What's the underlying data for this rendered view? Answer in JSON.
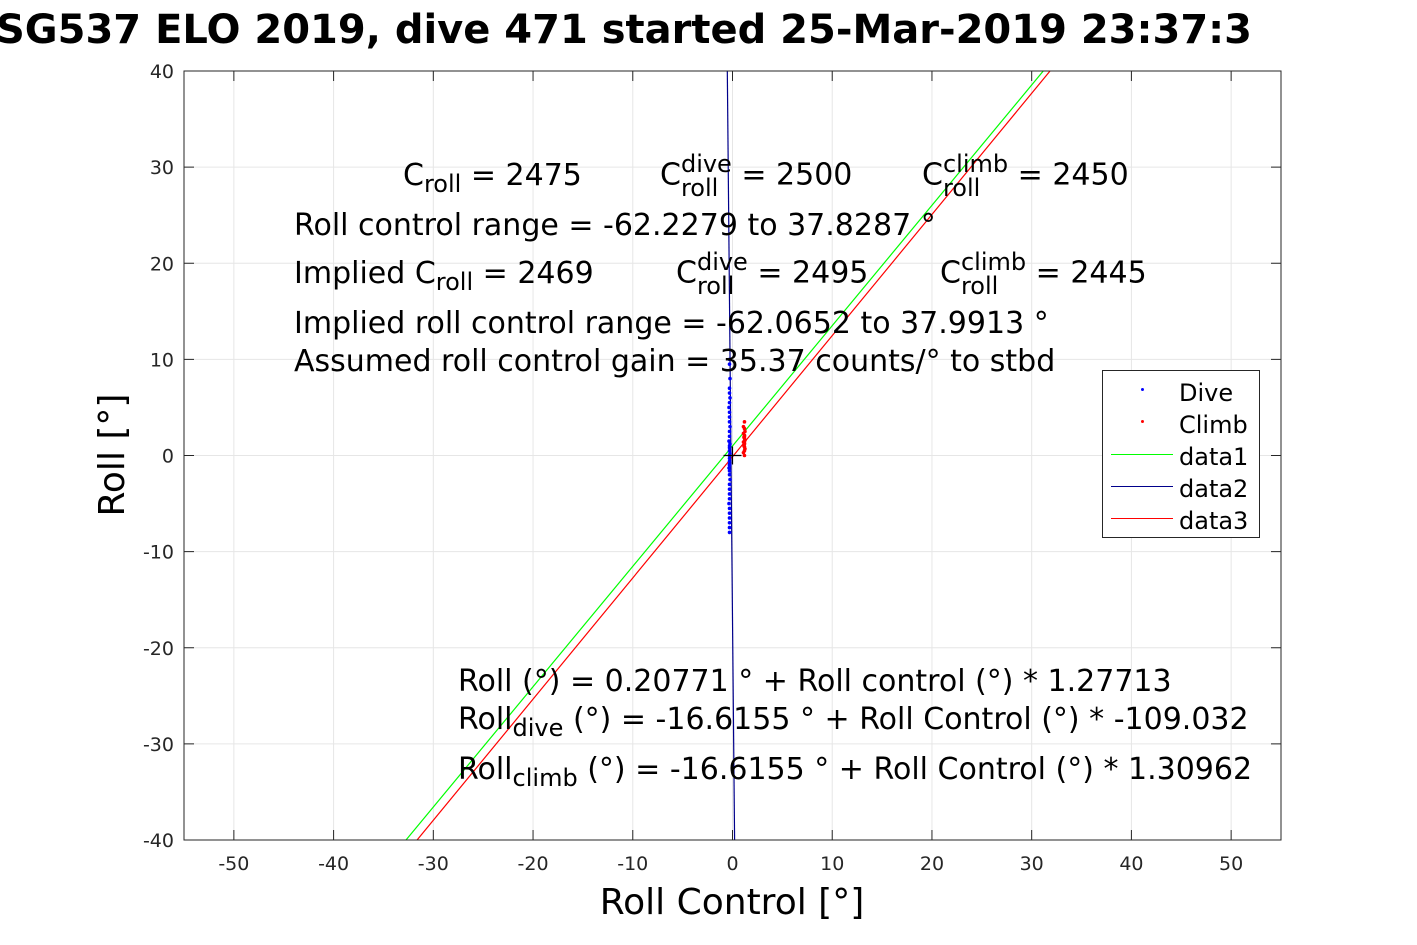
{
  "title": "SG537 ELO 2019, dive 471 started 25-Mar-2019 23:37:3",
  "chart_data": {
    "type": "scatter",
    "xlabel": "Roll Control [°]",
    "ylabel": "Roll [°]",
    "xlim": [
      -55,
      55
    ],
    "ylim": [
      -40,
      40
    ],
    "xticks": [
      -50,
      -40,
      -30,
      -20,
      -10,
      0,
      10,
      20,
      30,
      40,
      50
    ],
    "yticks": [
      -40,
      -30,
      -20,
      -10,
      0,
      10,
      20,
      30,
      40
    ],
    "xtick_labels": [
      "-50",
      "-40",
      "-30",
      "-20",
      "-10",
      "0",
      "10",
      "20",
      "30",
      "40",
      "50"
    ],
    "ytick_labels": [
      "-40",
      "-30",
      "-20",
      "-10",
      "0",
      "10",
      "20",
      "30",
      "40"
    ],
    "grid": true,
    "legend_position": "right",
    "series": [
      {
        "name": "Dive",
        "kind": "points",
        "color": "#0000ff",
        "x": [
          -0.3,
          -0.3,
          -0.25,
          -0.3,
          -0.3,
          -0.25,
          -0.3,
          -0.35,
          -0.3,
          -0.3,
          -0.3,
          -0.25,
          -0.3,
          -0.3,
          -0.35,
          -0.3,
          -0.3,
          -0.3,
          -0.25,
          -0.3,
          -0.3,
          -0.3,
          -0.3,
          -0.35,
          -0.3,
          -0.3,
          -0.25,
          -0.3,
          -0.3,
          -0.3,
          -0.3,
          -0.35,
          -0.3,
          -0.3,
          -0.3,
          -0.3,
          -0.3,
          -0.3,
          -0.25,
          -0.3
        ],
        "y": [
          10,
          9.5,
          8,
          7,
          6.5,
          6,
          5.5,
          5,
          4.5,
          4,
          3.5,
          3,
          2.5,
          2,
          1.5,
          1,
          0.8,
          0.5,
          0.2,
          0,
          -0.3,
          -0.6,
          -1,
          -1.3,
          -1.6,
          -2,
          -2.5,
          -3,
          -3.5,
          -4,
          -4.5,
          -5,
          -5.5,
          -6,
          -6.5,
          -7,
          -7.5,
          -8,
          1.2,
          -0.9
        ]
      },
      {
        "name": "Climb",
        "kind": "points",
        "color": "#ff0000",
        "x": [
          1.2,
          1.1,
          1.2,
          1.25,
          1.1,
          1.2,
          1.2,
          1.15,
          1.2,
          1.25,
          1.2,
          1.1,
          1.2,
          1.2,
          1.15,
          1.2,
          1.25,
          1.2,
          1.1,
          1.2
        ],
        "y": [
          3.5,
          3,
          2.8,
          2.5,
          2.3,
          2.1,
          2,
          1.9,
          1.8,
          1.6,
          1.5,
          1.4,
          1.3,
          1.2,
          1,
          0.9,
          0.7,
          0.5,
          0.3,
          0
        ]
      },
      {
        "name": "data1",
        "kind": "line",
        "color": "#00ff00",
        "x": [
          -32.74,
          31.16
        ],
        "y": [
          -40,
          40
        ]
      },
      {
        "name": "data2",
        "kind": "line",
        "color": "#00008b",
        "x": [
          -0.52,
          0.21
        ],
        "y": [
          40,
          -40
        ]
      },
      {
        "name": "data3",
        "kind": "line",
        "color": "#ff0000",
        "x": [
          -31.63,
          31.84
        ],
        "y": [
          -40,
          40
        ]
      }
    ],
    "center_marker": {
      "x": 0,
      "y": 0
    }
  },
  "annotations": {
    "line1": {
      "c": "C",
      "roll": "roll",
      "eq1": " = 2475",
      "dive_sup": "dive",
      "eq2": " = 2500",
      "climb_sup": "climb",
      "eq3": " = 2450"
    },
    "line2": "Roll control range = -62.2279 to 37.8287 °",
    "line3": {
      "prefix": "Implied C",
      "roll": "roll",
      "eq1": " = 2469",
      "dive_sup": "dive",
      "eq2": " = 2495",
      "climb_sup": "climb",
      "eq3": " = 2445"
    },
    "line4": "Implied roll control range = -62.0652 to 37.9913 °",
    "line5": "Assumed roll control gain = 35.37 counts/° to stbd",
    "fit1": "Roll (°) = 0.20771 ° + Roll control (°) * 1.27713",
    "fit2": {
      "prefix": "Roll",
      "sub": "dive",
      "rest": " (°) = -16.6155 ° + Roll Control (°) * -109.032"
    },
    "fit3": {
      "prefix": "Roll",
      "sub": "climb",
      "rest": " (°) = -16.6155 ° + Roll Control (°) * 1.30962"
    }
  }
}
